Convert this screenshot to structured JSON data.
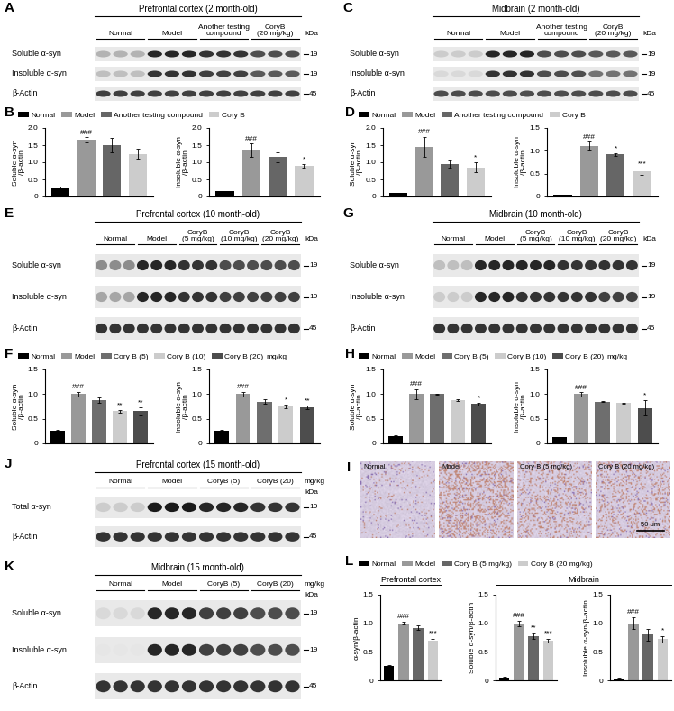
{
  "blots": [
    {
      "panel": "A",
      "title": "Prefrontal cortex (2 month-old)",
      "unit_label": "kDa",
      "lanes_per_group": 3,
      "groups": [
        "Normal",
        "Model",
        "Another testing\ncompound",
        "CoryB\n(20 mg/kg)"
      ],
      "rows": [
        {
          "label": "Soluble α-syn",
          "marker": 19,
          "band_intensity": [
            0.3,
            0.85,
            0.8,
            0.7
          ]
        },
        {
          "label": "Insoluble α-syn",
          "marker": 19,
          "band_intensity": [
            0.25,
            0.8,
            0.75,
            0.65
          ]
        },
        {
          "label": "β-Actin",
          "marker": 45,
          "band_intensity": [
            0.75,
            0.75,
            0.75,
            0.75
          ]
        }
      ]
    },
    {
      "panel": "C",
      "title": "Midbrain (2 month-old)",
      "unit_label": "kDa",
      "lanes_per_group": 3,
      "groups": [
        "Normal",
        "Model",
        "Another testing\ncompound",
        "CoryB\n(20 mg/kg)"
      ],
      "rows": [
        {
          "label": "Soluble α-syn",
          "marker": 19,
          "band_intensity": [
            0.2,
            0.85,
            0.7,
            0.65
          ]
        },
        {
          "label": "Insoluble α-syn",
          "marker": 19,
          "band_intensity": [
            0.15,
            0.8,
            0.7,
            0.55
          ]
        },
        {
          "label": "β-Actin",
          "marker": 45,
          "band_intensity": [
            0.7,
            0.7,
            0.7,
            0.7
          ]
        }
      ]
    },
    {
      "panel": "E",
      "title": "Prefrontal cortex (10 month-old)",
      "unit_label": "kDa",
      "lanes_per_group": 3,
      "groups": [
        "Normal",
        "Model",
        "CoryB\n(5 mg/kg)",
        "CoryB\n(10 mg/kg)",
        "CoryB\n(20 mg/kg)"
      ],
      "rows": [
        {
          "label": "Soluble α-syn",
          "marker": 19,
          "band_intensity": [
            0.45,
            0.85,
            0.8,
            0.7,
            0.7
          ]
        },
        {
          "label": "Insoluble α-syn",
          "marker": 19,
          "band_intensity": [
            0.35,
            0.85,
            0.8,
            0.75,
            0.75
          ]
        },
        {
          "label": "β-Actin",
          "marker": 45,
          "band_intensity": [
            0.8,
            0.8,
            0.8,
            0.8,
            0.8
          ]
        }
      ]
    },
    {
      "panel": "G",
      "title": "Midbrain (10 month-old)",
      "unit_label": "kDa",
      "lanes_per_group": 3,
      "groups": [
        "Normal",
        "Model",
        "CoryB\n(5 mg/kg)",
        "CoryB\n(10 mg/kg)",
        "CoryB\n(20 mg/kg)"
      ],
      "rows": [
        {
          "label": "Soluble α-syn",
          "marker": 19,
          "band_intensity": [
            0.25,
            0.85,
            0.85,
            0.8,
            0.8
          ]
        },
        {
          "label": "Insoluble α-syn",
          "marker": 19,
          "band_intensity": [
            0.2,
            0.85,
            0.8,
            0.8,
            0.75
          ]
        },
        {
          "label": "β-Actin",
          "marker": 45,
          "band_intensity": [
            0.8,
            0.8,
            0.8,
            0.8,
            0.8
          ]
        }
      ]
    },
    {
      "panel": "J",
      "title": "Prefrontal cortex (15 month-old)",
      "unit_label": "kDa",
      "lanes_per_group": 3,
      "groups": [
        "Normal",
        "Model",
        "CoryB (5)",
        "CoryB (20)"
      ],
      "annotation": "mg/kg",
      "rows": [
        {
          "label": "Total α-syn",
          "marker": 19,
          "band_intensity": [
            0.2,
            0.9,
            0.85,
            0.8
          ]
        },
        {
          "label": "β-Actin",
          "marker": 45,
          "band_intensity": [
            0.8,
            0.8,
            0.8,
            0.8
          ]
        }
      ]
    },
    {
      "panel": "K",
      "title": "Midbrain (15 month-old)",
      "unit_label": "kDa",
      "lanes_per_group": 3,
      "groups": [
        "Normal",
        "Model",
        "CoryB (5)",
        "CoryB (20)"
      ],
      "annotation": "mg/kg",
      "rows": [
        {
          "label": "Soluble α-syn",
          "marker": 19,
          "band_intensity": [
            0.15,
            0.85,
            0.75,
            0.7
          ]
        },
        {
          "label": "Insoluble α-syn",
          "marker": 19,
          "band_intensity": [
            0.1,
            0.85,
            0.75,
            0.7
          ]
        },
        {
          "label": "β-Actin",
          "marker": 45,
          "band_intensity": [
            0.8,
            0.8,
            0.8,
            0.8
          ]
        }
      ]
    }
  ],
  "histology": {
    "panel": "I",
    "scale_bar": "50 μm",
    "images": [
      {
        "title": "Normal",
        "stain": 0.1
      },
      {
        "title": "Model",
        "stain": 0.85
      },
      {
        "title": "Cory B (5 mg/kg)",
        "stain": 0.5
      },
      {
        "title": "Cory B (20 mg/kg)",
        "stain": 0.45
      }
    ]
  },
  "chart_data": [
    {
      "panel": "B",
      "type": "bar",
      "categories": [
        "Normal",
        "Model",
        "Another testing compound",
        "Cory B"
      ],
      "colors": [
        "#000000",
        "#999999",
        "#666666",
        "#cccccc"
      ],
      "legend": "lower left",
      "tick_labels": "y",
      "values": [
        0.25,
        1.65,
        1.5,
        1.25
      ],
      "errors": [
        0.03,
        0.08,
        0.2,
        0.15
      ],
      "significance": [
        null,
        "###",
        null,
        null
      ],
      "y_label": "Soluble α-syn\n/β-actin",
      "ylim": [
        0,
        2.0
      ],
      "yticks": [
        0,
        0.5,
        1.0,
        1.5,
        2.0
      ]
    },
    {
      "panel": "B",
      "type": "bar",
      "categories": [
        "Normal",
        "Model",
        "Another testing compound",
        "Cory B"
      ],
      "colors": [
        "#000000",
        "#999999",
        "#666666",
        "#cccccc"
      ],
      "tick_labels": "y",
      "values": [
        0.15,
        1.35,
        1.15,
        0.9
      ],
      "errors": [
        0.01,
        0.2,
        0.15,
        0.05
      ],
      "significance": [
        null,
        "###",
        null,
        "*"
      ],
      "y_label": "Insoluble α-syn\n/β-actin",
      "ylim": [
        0,
        2.0
      ],
      "yticks": [
        0,
        0.5,
        1.0,
        1.5,
        2.0
      ]
    },
    {
      "panel": "D",
      "type": "bar",
      "categories": [
        "Normal",
        "Model",
        "Another testing compound",
        "Cory B"
      ],
      "colors": [
        "#000000",
        "#999999",
        "#666666",
        "#cccccc"
      ],
      "legend": "lower left",
      "tick_labels": "y",
      "values": [
        0.1,
        1.45,
        0.95,
        0.85
      ],
      "errors": [
        0.01,
        0.3,
        0.1,
        0.15
      ],
      "significance": [
        null,
        "###",
        null,
        "*"
      ],
      "y_label": "Soluble α-syn\n/β-actin",
      "ylim": [
        0,
        2.0
      ],
      "yticks": [
        0,
        0.5,
        1.0,
        1.5,
        2.0
      ]
    },
    {
      "panel": "D",
      "type": "bar",
      "categories": [
        "Normal",
        "Model",
        "Another testing compound",
        "Cory B"
      ],
      "colors": [
        "#000000",
        "#999999",
        "#666666",
        "#cccccc"
      ],
      "tick_labels": "y",
      "values": [
        0.03,
        1.1,
        0.92,
        0.55
      ],
      "errors": [
        0.005,
        0.1,
        0.03,
        0.07
      ],
      "significance": [
        null,
        "###",
        "*",
        "***"
      ],
      "y_label": "Insoluble α-syn\n/β-actin",
      "ylim": [
        0,
        1.5
      ],
      "yticks": [
        0,
        0.5,
        1.0,
        1.5
      ]
    },
    {
      "panel": "F",
      "type": "bar",
      "categories": [
        "Normal",
        "Model",
        "Cory B (5)",
        "Cory B (10)",
        "Cory B (20)"
      ],
      "colors": [
        "#000000",
        "#999999",
        "#6e6e6e",
        "#cccccc",
        "#4d4d4d"
      ],
      "legend": "lower left",
      "annotation": "mg/kg",
      "tick_labels": "y",
      "values": [
        0.25,
        1.0,
        0.88,
        0.65,
        0.65
      ],
      "errors": [
        0.02,
        0.05,
        0.05,
        0.02,
        0.08
      ],
      "significance": [
        null,
        "###",
        null,
        "**",
        "**"
      ],
      "y_label": "Soluble α-syn\n/β-actin",
      "ylim": [
        0,
        1.5
      ],
      "yticks": [
        0,
        0.5,
        1.0,
        1.5
      ]
    },
    {
      "panel": "F",
      "type": "bar",
      "categories": [
        "Normal",
        "Model",
        "Cory B (5)",
        "Cory B (10)",
        "Cory B (20)"
      ],
      "colors": [
        "#000000",
        "#999999",
        "#6e6e6e",
        "#cccccc",
        "#4d4d4d"
      ],
      "tick_labels": "y",
      "values": [
        0.25,
        1.0,
        0.85,
        0.75,
        0.73
      ],
      "errors": [
        0.02,
        0.05,
        0.04,
        0.04,
        0.03
      ],
      "significance": [
        null,
        "###",
        null,
        "*",
        "**"
      ],
      "y_label": "Insoluble α-syn\n/β-actin",
      "ylim": [
        0,
        1.5
      ],
      "yticks": [
        0,
        0.5,
        1.0,
        1.5
      ]
    },
    {
      "panel": "H",
      "type": "bar",
      "categories": [
        "Normal",
        "Model",
        "Cory B (5)",
        "Cory B (10)",
        "Cory B (20)"
      ],
      "colors": [
        "#000000",
        "#999999",
        "#6e6e6e",
        "#cccccc",
        "#4d4d4d"
      ],
      "legend": "lower left",
      "annotation": "mg/kg",
      "tick_labels": "y",
      "values": [
        0.15,
        1.0,
        1.0,
        0.88,
        0.8
      ],
      "errors": [
        0.01,
        0.1,
        0.01,
        0.02,
        0.03
      ],
      "significance": [
        null,
        "###",
        null,
        null,
        "*"
      ],
      "y_label": "Soluble α-syn\n/β-actin",
      "ylim": [
        0,
        1.5
      ],
      "yticks": [
        0,
        0.5,
        1.0,
        1.5
      ]
    },
    {
      "panel": "H",
      "type": "bar",
      "categories": [
        "Normal",
        "Model",
        "Cory B (5)",
        "Cory B (10)",
        "Cory B (20)"
      ],
      "colors": [
        "#000000",
        "#999999",
        "#6e6e6e",
        "#cccccc",
        "#4d4d4d"
      ],
      "tick_labels": "y",
      "values": [
        0.12,
        1.0,
        0.85,
        0.82,
        0.72
      ],
      "errors": [
        0.01,
        0.04,
        0.01,
        0.01,
        0.15
      ],
      "significance": [
        null,
        "###",
        null,
        null,
        "*"
      ],
      "y_label": "Insoluble α-syn\n/β-actin",
      "ylim": [
        0,
        1.5
      ],
      "yticks": [
        0,
        0.5,
        1.0,
        1.5
      ]
    },
    {
      "panel": "L",
      "type": "bar",
      "title": "Prefrontal cortex",
      "categories": [
        "Normal",
        "Model",
        "Cory B (5 mg/kg)",
        "Cory B (20 mg/kg)"
      ],
      "colors": [
        "#000000",
        "#999999",
        "#666666",
        "#cccccc"
      ],
      "legend": "lower left",
      "tick_labels": "y",
      "values": [
        0.25,
        1.0,
        0.92,
        0.7
      ],
      "errors": [
        0.02,
        0.02,
        0.04,
        0.03
      ],
      "significance": [
        null,
        "###",
        null,
        "***"
      ],
      "y_label": "α-syn/β-actin",
      "ylim": [
        0,
        1.5
      ],
      "yticks": [
        0,
        0.5,
        1.0,
        1.5
      ]
    },
    {
      "panel": "L",
      "type": "bar",
      "title": "Midbrain",
      "categories": [
        "Normal",
        "Model",
        "Cory B (5 mg/kg)",
        "Cory B (20 mg/kg)"
      ],
      "colors": [
        "#000000",
        "#999999",
        "#666666",
        "#cccccc"
      ],
      "tick_labels": "y",
      "values": [
        0.05,
        1.0,
        0.78,
        0.7
      ],
      "errors": [
        0.01,
        0.05,
        0.05,
        0.03
      ],
      "significance": [
        null,
        "###",
        "**",
        "***"
      ],
      "y_label": "Soluble α-syn/β-actin",
      "ylim": [
        0,
        1.5
      ],
      "yticks": [
        0,
        0.5,
        1.0,
        1.5
      ]
    },
    {
      "panel": "L",
      "type": "bar",
      "categories": [
        "Normal",
        "Model",
        "Cory B (5 mg/kg)",
        "Cory B (20 mg/kg)"
      ],
      "colors": [
        "#000000",
        "#999999",
        "#666666",
        "#cccccc"
      ],
      "tick_labels": "y",
      "values": [
        0.03,
        1.0,
        0.8,
        0.72
      ],
      "errors": [
        0.01,
        0.1,
        0.1,
        0.06
      ],
      "significance": [
        null,
        "###",
        null,
        "*"
      ],
      "y_label": "Insoluble α-syn/β-actin",
      "ylim": [
        0,
        1.5
      ],
      "yticks": [
        0,
        0.5,
        1.0,
        1.5
      ]
    }
  ]
}
